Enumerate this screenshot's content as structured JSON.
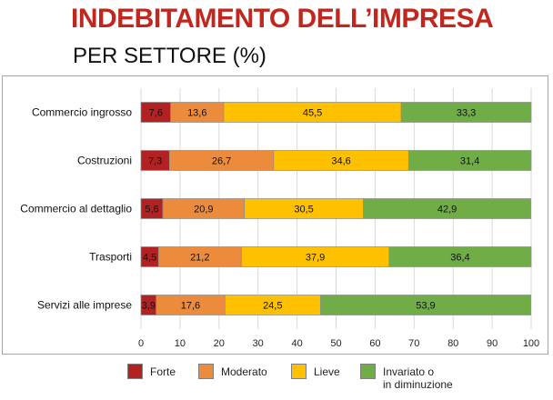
{
  "header": {
    "title": "INDEBITAMENTO DELL’IMPRESA",
    "subtitle": "PER SETTORE (%)"
  },
  "chart_data": {
    "type": "bar",
    "orientation": "horizontal",
    "stacked": true,
    "categories": [
      "Commercio ingrosso",
      "Costruzioni",
      "Commercio al dettaglio",
      "Trasporti",
      "Servizi alle imprese"
    ],
    "series": [
      {
        "name": "Forte",
        "color": "#b22222",
        "values": [
          7.6,
          7.3,
          5.6,
          4.5,
          3.9
        ],
        "labels": [
          "7,6",
          "7,3",
          "5,6",
          "4,5",
          "3,9"
        ]
      },
      {
        "name": "Moderato",
        "color": "#ed8b3c",
        "values": [
          13.6,
          26.7,
          20.9,
          21.2,
          17.6
        ],
        "labels": [
          "13,6",
          "26,7",
          "20,9",
          "21,2",
          "17,6"
        ]
      },
      {
        "name": "Lieve",
        "color": "#ffc000",
        "values": [
          45.5,
          34.6,
          30.5,
          37.9,
          24.5
        ],
        "labels": [
          "45,5",
          "34,6",
          "30,5",
          "37,9",
          "24,5"
        ]
      },
      {
        "name": "Invariato o\nin diminuzione",
        "color": "#70ad47",
        "values": [
          33.3,
          31.4,
          42.9,
          36.4,
          53.9
        ],
        "labels": [
          "33,3",
          "31,4",
          "42,9",
          "36,4",
          "53,9"
        ]
      }
    ],
    "xlim": [
      0,
      100
    ],
    "xticks": [
      "0",
      "10",
      "20",
      "30",
      "40",
      "50",
      "60",
      "70",
      "80",
      "90",
      "100"
    ],
    "grid": true,
    "legend": "bottom"
  }
}
